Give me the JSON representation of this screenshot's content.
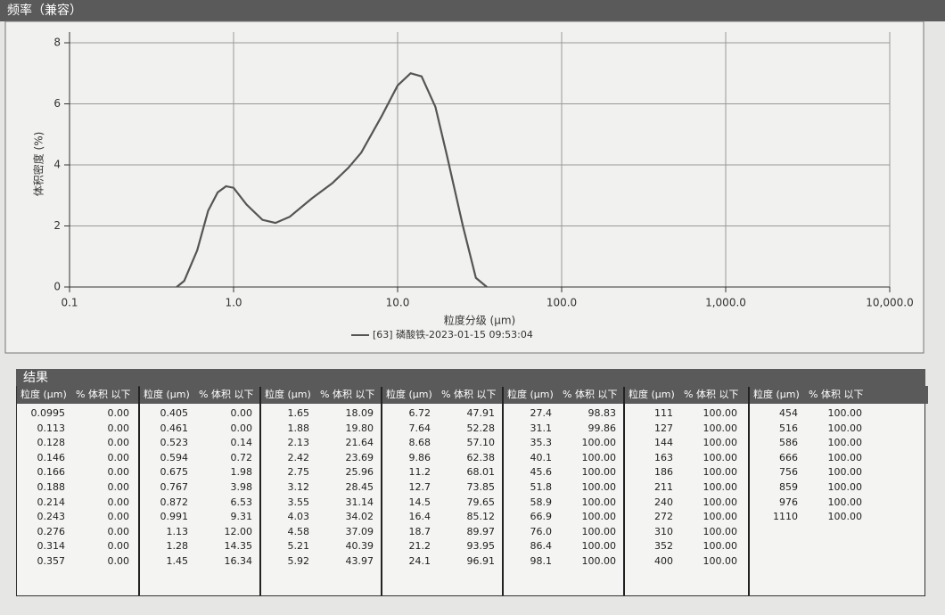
{
  "chart_data": {
    "type": "line",
    "title": "频率（兼容）",
    "x_label": "粒度分级 (μm)",
    "y_label": "体积密度 (%)",
    "xlim": [
      0.1,
      10000
    ],
    "ylim": [
      0,
      8
    ],
    "log_x": true,
    "grid": true,
    "xticks": [
      {
        "value": 0.1,
        "label": "0.1"
      },
      {
        "value": 1,
        "label": "1.0"
      },
      {
        "value": 10,
        "label": "10.0"
      },
      {
        "value": 100,
        "label": "100.0"
      },
      {
        "value": 1000,
        "label": "1,000.0"
      },
      {
        "value": 10000,
        "label": "10,000.0"
      }
    ],
    "yticks": [
      0,
      2,
      4,
      6,
      8
    ],
    "x": [
      0.45,
      0.5,
      0.6,
      0.7,
      0.8,
      0.9,
      1.0,
      1.2,
      1.5,
      1.8,
      2.2,
      3,
      4,
      5,
      6,
      8,
      10,
      12,
      14,
      17,
      20,
      25,
      30,
      35
    ],
    "series": [
      {
        "name": "[63] 磷酸铁-2023-01-15 09:53:04",
        "color": "#555555",
        "values": [
          0,
          0.2,
          1.2,
          2.5,
          3.1,
          3.3,
          3.25,
          2.7,
          2.2,
          2.1,
          2.3,
          2.9,
          3.4,
          3.9,
          4.4,
          5.6,
          6.6,
          7.0,
          6.9,
          5.9,
          4.3,
          2.0,
          0.3,
          0
        ]
      }
    ]
  },
  "table": {
    "title": "结果",
    "groups": [
      {
        "headers": [
          "粒度 (μm)",
          "% 体积 以下"
        ],
        "rows": [
          [
            "0.0995",
            "0.00"
          ],
          [
            "0.113",
            "0.00"
          ],
          [
            "0.128",
            "0.00"
          ],
          [
            "0.146",
            "0.00"
          ],
          [
            "0.166",
            "0.00"
          ],
          [
            "0.188",
            "0.00"
          ],
          [
            "0.214",
            "0.00"
          ],
          [
            "0.243",
            "0.00"
          ],
          [
            "0.276",
            "0.00"
          ],
          [
            "0.314",
            "0.00"
          ],
          [
            "0.357",
            "0.00"
          ]
        ]
      },
      {
        "headers": [
          "粒度 (μm)",
          "% 体积 以下"
        ],
        "rows": [
          [
            "0.405",
            "0.00"
          ],
          [
            "0.461",
            "0.00"
          ],
          [
            "0.523",
            "0.14"
          ],
          [
            "0.594",
            "0.72"
          ],
          [
            "0.675",
            "1.98"
          ],
          [
            "0.767",
            "3.98"
          ],
          [
            "0.872",
            "6.53"
          ],
          [
            "0.991",
            "9.31"
          ],
          [
            "1.13",
            "12.00"
          ],
          [
            "1.28",
            "14.35"
          ],
          [
            "1.45",
            "16.34"
          ]
        ]
      },
      {
        "headers": [
          "粒度 (μm)",
          "% 体积 以下"
        ],
        "rows": [
          [
            "1.65",
            "18.09"
          ],
          [
            "1.88",
            "19.80"
          ],
          [
            "2.13",
            "21.64"
          ],
          [
            "2.42",
            "23.69"
          ],
          [
            "2.75",
            "25.96"
          ],
          [
            "3.12",
            "28.45"
          ],
          [
            "3.55",
            "31.14"
          ],
          [
            "4.03",
            "34.02"
          ],
          [
            "4.58",
            "37.09"
          ],
          [
            "5.21",
            "40.39"
          ],
          [
            "5.92",
            "43.97"
          ]
        ]
      },
      {
        "headers": [
          "粒度 (μm)",
          "% 体积 以下"
        ],
        "rows": [
          [
            "6.72",
            "47.91"
          ],
          [
            "7.64",
            "52.28"
          ],
          [
            "8.68",
            "57.10"
          ],
          [
            "9.86",
            "62.38"
          ],
          [
            "11.2",
            "68.01"
          ],
          [
            "12.7",
            "73.85"
          ],
          [
            "14.5",
            "79.65"
          ],
          [
            "16.4",
            "85.12"
          ],
          [
            "18.7",
            "89.97"
          ],
          [
            "21.2",
            "93.95"
          ],
          [
            "24.1",
            "96.91"
          ]
        ]
      },
      {
        "headers": [
          "粒度 (μm)",
          "% 体积 以下"
        ],
        "rows": [
          [
            "27.4",
            "98.83"
          ],
          [
            "31.1",
            "99.86"
          ],
          [
            "35.3",
            "100.00"
          ],
          [
            "40.1",
            "100.00"
          ],
          [
            "45.6",
            "100.00"
          ],
          [
            "51.8",
            "100.00"
          ],
          [
            "58.9",
            "100.00"
          ],
          [
            "66.9",
            "100.00"
          ],
          [
            "76.0",
            "100.00"
          ],
          [
            "86.4",
            "100.00"
          ],
          [
            "98.1",
            "100.00"
          ]
        ]
      },
      {
        "headers": [
          "粒度 (μm)",
          "% 体积 以下"
        ],
        "rows": [
          [
            "111",
            "100.00"
          ],
          [
            "127",
            "100.00"
          ],
          [
            "144",
            "100.00"
          ],
          [
            "163",
            "100.00"
          ],
          [
            "186",
            "100.00"
          ],
          [
            "211",
            "100.00"
          ],
          [
            "240",
            "100.00"
          ],
          [
            "272",
            "100.00"
          ],
          [
            "310",
            "100.00"
          ],
          [
            "352",
            "100.00"
          ],
          [
            "400",
            "100.00"
          ]
        ]
      },
      {
        "headers": [
          "粒度 (μm)",
          "% 体积 以下"
        ],
        "rows": [
          [
            "454",
            "100.00"
          ],
          [
            "516",
            "100.00"
          ],
          [
            "586",
            "100.00"
          ],
          [
            "666",
            "100.00"
          ],
          [
            "756",
            "100.00"
          ],
          [
            "859",
            "100.00"
          ],
          [
            "976",
            "100.00"
          ],
          [
            "1110",
            "100.00"
          ]
        ]
      }
    ]
  }
}
